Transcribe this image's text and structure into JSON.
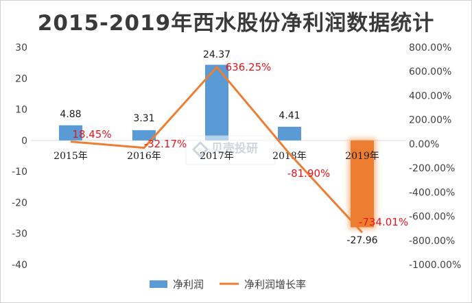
{
  "chart_data": {
    "type": "bar",
    "title": "2015-2019年西水股份净利润数据统计",
    "categories": [
      "2015年",
      "2016年",
      "2017年",
      "2018年",
      "2019年"
    ],
    "series": [
      {
        "name": "净利润",
        "type": "bar",
        "axis": "left",
        "values": [
          4.88,
          3.31,
          24.37,
          4.41,
          -27.96
        ],
        "labels": [
          "4.88",
          "3.31",
          "24.37",
          "4.41",
          "-27.96"
        ],
        "colors": [
          "#5b9bd5",
          "#5b9bd5",
          "#5b9bd5",
          "#5b9bd5",
          "#ed7d31"
        ]
      },
      {
        "name": "净利润增长率",
        "type": "line",
        "axis": "right",
        "values": [
          18.45,
          -32.17,
          636.25,
          -81.9,
          -734.01
        ],
        "labels": [
          "18.45%",
          "-32.17%",
          "636.25%",
          "-81.90%",
          "-734.01%"
        ],
        "color": "#ed7d31"
      }
    ],
    "y_left": {
      "min": -40,
      "max": 30,
      "ticks": [
        "30",
        "20",
        "10",
        "0",
        "-10",
        "-20",
        "-30",
        "-40"
      ]
    },
    "y_right": {
      "min": -1000,
      "max": 800,
      "ticks": [
        "800.00%",
        "600.00%",
        "400.00%",
        "200.00%",
        "0.00%",
        "-200.00%",
        "-400.00%",
        "-600.00%",
        "-800.00%",
        "-1000.00%"
      ]
    },
    "legend": "bottom",
    "grid": false
  },
  "watermark": "贝壳投研"
}
